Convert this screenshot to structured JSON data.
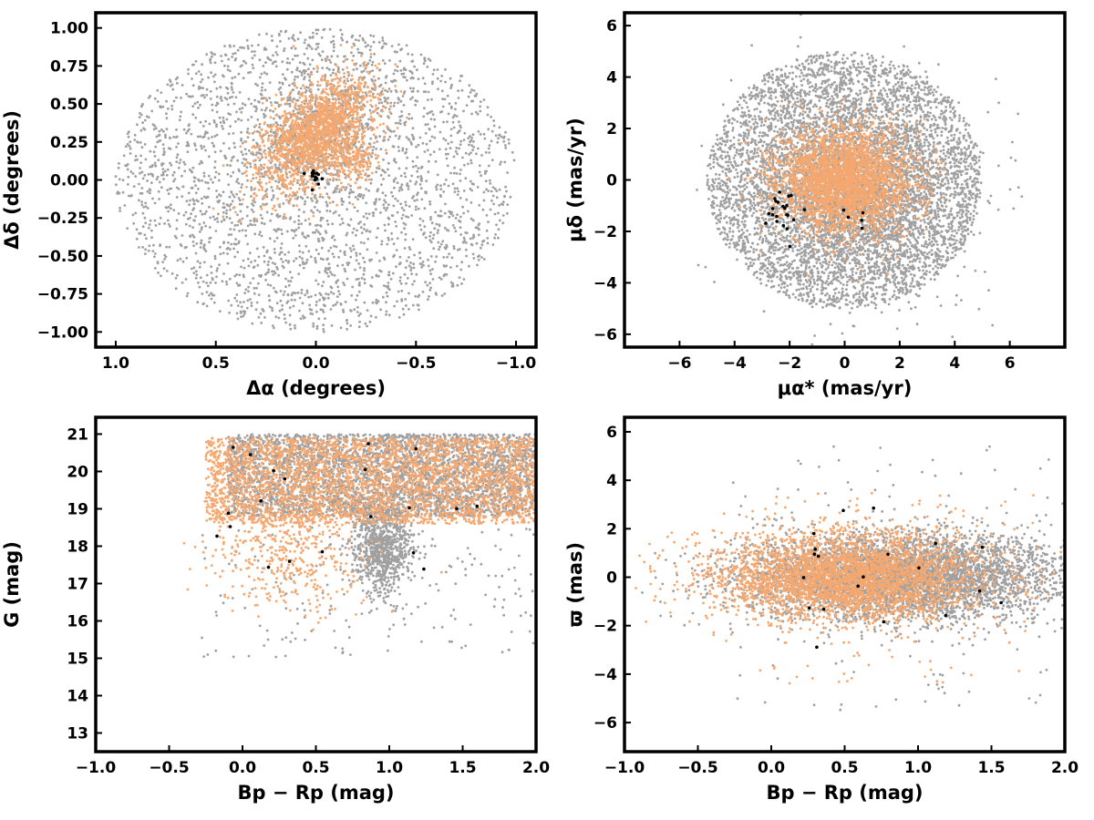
{
  "colors": {
    "field_stars": "#a0a0a0",
    "cluster_members": "#f4a870",
    "bright_members": "#000000",
    "axes": "#000000"
  },
  "chart_data": [
    {
      "type": "scatter",
      "xlabel": "Δα (degrees)",
      "ylabel": "Δδ (degrees)",
      "xlim": [
        1.1,
        -1.1
      ],
      "ylim": [
        -1.1,
        1.1
      ],
      "x_inverted": true,
      "xticks": [
        1.0,
        0.5,
        0.0,
        -0.5,
        -1.0
      ],
      "xtick_labels": [
        "1.0",
        "0.5",
        "0.0",
        "−0.5",
        "−1.0"
      ],
      "yticks": [
        1.0,
        0.75,
        0.5,
        0.25,
        0.0,
        -0.25,
        -0.5,
        -0.75,
        -1.0
      ],
      "ytick_labels": [
        "1.00",
        "0.75",
        "0.50",
        "0.25",
        "0.00",
        "−0.25",
        "−0.50",
        "−0.75",
        "−1.00"
      ],
      "series": [
        {
          "role": "field",
          "color": "#a0a0a0",
          "shape": "disk",
          "center": [
            0,
            0
          ],
          "radius": [
            1.0,
            1.0
          ],
          "count": 2600
        },
        {
          "role": "field",
          "color": "#a0a0a0",
          "shape": "blob",
          "center": [
            0.0,
            0.3
          ],
          "spread": [
            0.14,
            0.24
          ],
          "rotation": 0.55,
          "count": 700
        },
        {
          "role": "members",
          "color": "#f4a870",
          "shape": "blob",
          "center": [
            0.0,
            0.3
          ],
          "spread": [
            0.11,
            0.2
          ],
          "rotation": 0.55,
          "count": 1800
        },
        {
          "role": "members",
          "color": "#f4a870",
          "shape": "blob",
          "center": [
            -0.2,
            0.12
          ],
          "spread": [
            0.05,
            0.06
          ],
          "rotation": 0,
          "count": 150
        },
        {
          "role": "bright",
          "color": "#000000",
          "shape": "blob",
          "center": [
            0.0,
            0.02
          ],
          "spread": [
            0.03,
            0.03
          ],
          "rotation": 0,
          "count": 14
        }
      ]
    },
    {
      "type": "scatter",
      "xlabel": "μα* (mas/yr)",
      "ylabel": "μδ (mas/yr)",
      "xlim": [
        -8,
        8
      ],
      "ylim": [
        -6.5,
        6.5
      ],
      "xticks": [
        -6,
        -4,
        -2,
        0,
        2,
        4,
        6
      ],
      "xtick_labels": [
        "−6",
        "−4",
        "−2",
        "0",
        "2",
        "4",
        "6"
      ],
      "yticks": [
        6,
        4,
        2,
        0,
        -2,
        -4,
        -6
      ],
      "ytick_labels": [
        "6",
        "4",
        "2",
        "0",
        "−2",
        "−4",
        "−6"
      ],
      "series": [
        {
          "role": "field",
          "color": "#a0a0a0",
          "shape": "disk",
          "center": [
            0,
            0
          ],
          "radius": [
            5.0,
            5.0
          ],
          "count": 4500
        },
        {
          "role": "field",
          "color": "#a0a0a0",
          "shape": "blob",
          "center": [
            0.5,
            -0.5
          ],
          "spread": [
            1.8,
            1.8
          ],
          "rotation": 0,
          "count": 2500
        },
        {
          "role": "members",
          "color": "#f4a870",
          "shape": "blob",
          "center": [
            0.0,
            0.0
          ],
          "spread": [
            1.2,
            1.0
          ],
          "rotation": 0,
          "count": 3000
        },
        {
          "role": "bright",
          "color": "#000000",
          "shape": "blob",
          "center": [
            -2.2,
            -1.3
          ],
          "spread": [
            0.35,
            0.6
          ],
          "rotation": 0,
          "count": 22
        },
        {
          "role": "bright",
          "color": "#000000",
          "shape": "blob",
          "center": [
            0.5,
            -1.5
          ],
          "spread": [
            0.4,
            0.3
          ],
          "rotation": 0,
          "count": 5
        }
      ]
    },
    {
      "type": "scatter",
      "xlabel": "Bp − Rp (mag)",
      "ylabel": "G (mag)",
      "xlim": [
        -1.0,
        2.0
      ],
      "ylim": [
        12.5,
        21.45
      ],
      "xticks": [
        -1.0,
        -0.5,
        0.0,
        0.5,
        1.0,
        1.5,
        2.0
      ],
      "xtick_labels": [
        "−1.0",
        "−0.5",
        "0.0",
        "0.5",
        "1.0",
        "1.5",
        "2.0"
      ],
      "yticks": [
        21,
        20,
        19,
        18,
        17,
        16,
        15,
        14,
        13
      ],
      "ytick_labels": [
        "21",
        "20",
        "19",
        "18",
        "17",
        "16",
        "15",
        "14",
        "13"
      ],
      "series": [
        {
          "role": "field",
          "color": "#a0a0a0",
          "shape": "band",
          "x_range": [
            -0.1,
            2.0
          ],
          "y_range": [
            18.8,
            21.0
          ],
          "count": 3500
        },
        {
          "role": "field",
          "color": "#a0a0a0",
          "shape": "blob",
          "center": [
            0.95,
            18.0
          ],
          "spread": [
            0.1,
            0.6
          ],
          "rotation": 0,
          "count": 900
        },
        {
          "role": "field",
          "color": "#a0a0a0",
          "shape": "band",
          "x_range": [
            -0.3,
            2.0
          ],
          "y_range": [
            15.0,
            18.5
          ],
          "count": 180
        },
        {
          "role": "members",
          "color": "#f4a870",
          "shape": "band",
          "x_range": [
            -0.25,
            2.0
          ],
          "y_range": [
            18.6,
            20.9
          ],
          "count": 3300
        },
        {
          "role": "members",
          "color": "#f4a870",
          "shape": "blob",
          "center": [
            0.3,
            17.8
          ],
          "spread": [
            0.25,
            0.8
          ],
          "rotation": 0,
          "count": 450
        },
        {
          "role": "bright",
          "color": "#000000",
          "shape": "band",
          "x_range": [
            -0.2,
            1.6
          ],
          "y_range": [
            17.0,
            20.9
          ],
          "count": 20
        }
      ]
    },
    {
      "type": "scatter",
      "xlabel": "Bp − Rp (mag)",
      "ylabel": "ϖ (mas)",
      "xlim": [
        -1.0,
        2.0
      ],
      "ylim": [
        -7.2,
        6.6
      ],
      "xticks": [
        -1.0,
        -0.5,
        0.0,
        0.5,
        1.0,
        1.5,
        2.0
      ],
      "xtick_labels": [
        "−1.0",
        "−0.5",
        "0.0",
        "0.5",
        "1.0",
        "1.5",
        "2.0"
      ],
      "yticks": [
        6,
        4,
        2,
        0,
        -2,
        -4,
        -6
      ],
      "ytick_labels": [
        "6",
        "4",
        "2",
        "0",
        "−2",
        "−4",
        "−6"
      ],
      "series": [
        {
          "role": "field",
          "color": "#a0a0a0",
          "shape": "blob",
          "center": [
            0.9,
            0.0
          ],
          "spread": [
            0.55,
            0.9
          ],
          "rotation": 0,
          "count": 4500
        },
        {
          "role": "field",
          "color": "#a0a0a0",
          "shape": "band",
          "x_range": [
            -0.3,
            2.0
          ],
          "y_range": [
            -5.5,
            5.5
          ],
          "count": 150
        },
        {
          "role": "members",
          "color": "#f4a870",
          "shape": "blob",
          "center": [
            0.5,
            0.0
          ],
          "spread": [
            0.45,
            0.9
          ],
          "rotation": 0,
          "count": 3500
        },
        {
          "role": "members",
          "color": "#f4a870",
          "shape": "band",
          "x_range": [
            -0.2,
            1.8
          ],
          "y_range": [
            -4.5,
            3.5
          ],
          "count": 120
        },
        {
          "role": "bright",
          "color": "#000000",
          "shape": "band",
          "x_range": [
            -0.1,
            1.6
          ],
          "y_range": [
            -3.0,
            3.0
          ],
          "count": 20
        }
      ]
    }
  ]
}
